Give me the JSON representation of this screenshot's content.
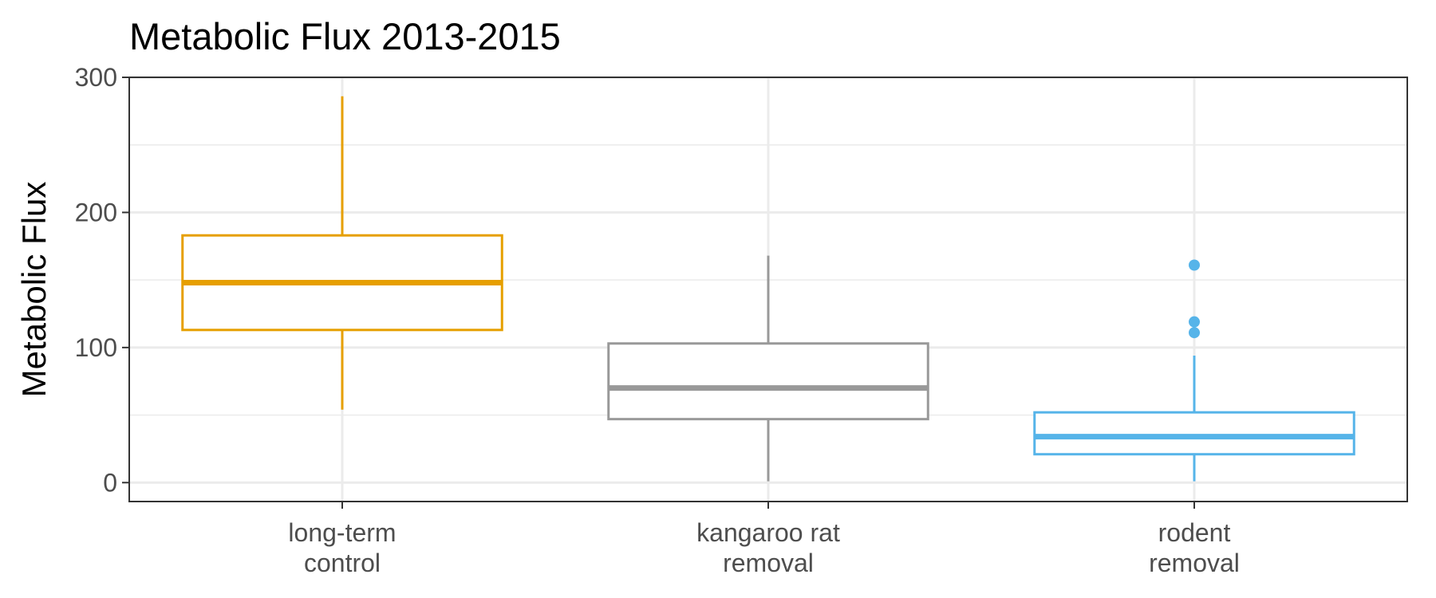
{
  "chart_data": {
    "type": "boxplot",
    "title": "Metabolic Flux 2013-2015",
    "xlabel": "",
    "ylabel": "Metabolic Flux",
    "ylim": [
      -14,
      300
    ],
    "yticks": [
      0,
      100,
      200,
      300
    ],
    "grid": true,
    "legend": "none",
    "categories": [
      {
        "label_lines": [
          "long-term",
          "control"
        ],
        "color": "#E69F00"
      },
      {
        "label_lines": [
          "kangaroo rat",
          "removal"
        ],
        "color": "#999999"
      },
      {
        "label_lines": [
          "rodent",
          "removal"
        ],
        "color": "#56B4E9"
      }
    ],
    "boxes": [
      {
        "whisker_low": 54,
        "q1": 113,
        "median": 148,
        "q3": 183,
        "whisker_high": 286,
        "outliers": []
      },
      {
        "whisker_low": 1,
        "q1": 47,
        "median": 70,
        "q3": 103,
        "whisker_high": 168,
        "outliers": []
      },
      {
        "whisker_low": 1,
        "q1": 21,
        "median": 34,
        "q3": 52,
        "whisker_high": 94,
        "outliers": [
          111,
          119,
          161
        ]
      }
    ]
  }
}
